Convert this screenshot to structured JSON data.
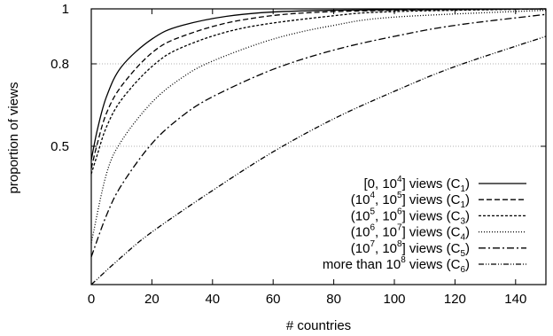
{
  "chart_data": {
    "type": "line",
    "xlabel": "# countries",
    "ylabel": "proportion of views",
    "xlim": [
      0,
      150
    ],
    "ylim": [
      0,
      1
    ],
    "x_ticks": [
      0,
      20,
      40,
      60,
      80,
      100,
      120,
      140
    ],
    "y_ticks": [
      0.5,
      0.8,
      1
    ],
    "y_tick_labels": [
      "0.5",
      "0.8",
      "1"
    ],
    "grid": "horizontal dotted at y ticks",
    "legend_position": "bottom-right",
    "series": [
      {
        "label": {
          "pre": "[0, 10",
          "sup1": "4",
          "mid": "] views (C",
          "sub": "1",
          "post": ")"
        },
        "dash": "solid",
        "x": [
          0,
          2,
          5,
          10,
          20,
          30,
          50,
          80,
          150
        ],
        "y": [
          0.45,
          0.56,
          0.68,
          0.79,
          0.89,
          0.94,
          0.98,
          0.995,
          1.0
        ]
      },
      {
        "label": {
          "pre": "(10",
          "sup1": "4",
          "mid1": ", 10",
          "sup2": "5",
          "mid": "] views (C",
          "sub": "1",
          "post": ")"
        },
        "dash": "6,3",
        "x": [
          0,
          2,
          5,
          10,
          20,
          30,
          50,
          80,
          150
        ],
        "y": [
          0.42,
          0.51,
          0.62,
          0.72,
          0.84,
          0.9,
          0.96,
          0.99,
          1.0
        ]
      },
      {
        "label": {
          "pre": "(10",
          "sup1": "5",
          "mid1": ", 10",
          "sup2": "6",
          "mid": "] views (C",
          "sub": "3",
          "post": ")"
        },
        "dash": "3,2",
        "x": [
          0,
          2,
          5,
          10,
          20,
          30,
          50,
          80,
          100,
          150
        ],
        "y": [
          0.4,
          0.47,
          0.57,
          0.67,
          0.79,
          0.86,
          0.93,
          0.975,
          0.99,
          1.0
        ]
      },
      {
        "label": {
          "pre": "(10",
          "sup1": "6",
          "mid1": ", 10",
          "sup2": "7",
          "mid": "] views (C",
          "sub": "4",
          "post": ")"
        },
        "dash": "1,2",
        "x": [
          0,
          5,
          10,
          20,
          30,
          40,
          60,
          80,
          100,
          150
        ],
        "y": [
          0.15,
          0.4,
          0.52,
          0.66,
          0.75,
          0.81,
          0.89,
          0.94,
          0.97,
          0.995
        ]
      },
      {
        "label": {
          "pre": "(10",
          "sup1": "7",
          "mid1": ", 10",
          "sup2": "8",
          "mid": "] views (C",
          "sub": "5",
          "post": ")"
        },
        "dash": "8,3,2,3",
        "x": [
          0,
          5,
          10,
          20,
          30,
          40,
          60,
          80,
          100,
          120,
          150
        ],
        "y": [
          0.1,
          0.25,
          0.36,
          0.51,
          0.61,
          0.68,
          0.78,
          0.85,
          0.9,
          0.94,
          0.98
        ]
      },
      {
        "label": {
          "pre": "more than 10",
          "sup1": "8",
          "mid": " views (C",
          "sub": "6",
          "post": ")"
        },
        "dash": "6,2,1,2,1,2",
        "x": [
          0,
          10,
          20,
          40,
          60,
          80,
          100,
          120,
          150
        ],
        "y": [
          0.0,
          0.1,
          0.19,
          0.34,
          0.48,
          0.6,
          0.7,
          0.79,
          0.9
        ]
      }
    ]
  }
}
